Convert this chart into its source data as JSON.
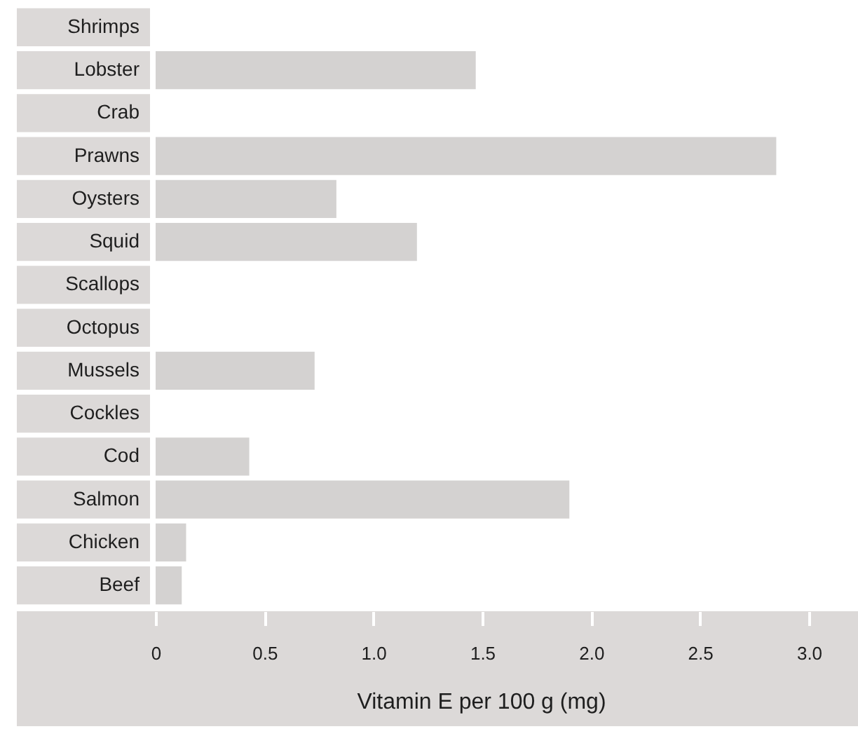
{
  "chart_data": {
    "type": "bar",
    "orientation": "horizontal",
    "categories": [
      "Shrimps",
      "Lobster",
      "Crab",
      "Prawns",
      "Oysters",
      "Squid",
      "Scallops",
      "Octopus",
      "Mussels",
      "Cockles",
      "Cod",
      "Salmon",
      "Chicken",
      "Beef"
    ],
    "values": [
      null,
      1.47,
      null,
      2.85,
      0.83,
      1.2,
      null,
      null,
      0.73,
      null,
      0.43,
      1.9,
      0.14,
      0.12
    ],
    "color": "#d4d2d1",
    "xlabel": "Vitamin E per 100 g (mg)",
    "xlim": [
      0,
      3.0
    ],
    "xticks": [
      0,
      0.5,
      {
        "value": 1,
        "label": "1.0"
      },
      1.5,
      {
        "value": 2,
        "label": "2.0"
      },
      2.5,
      {
        "value": 3,
        "label": "3.0"
      }
    ]
  }
}
